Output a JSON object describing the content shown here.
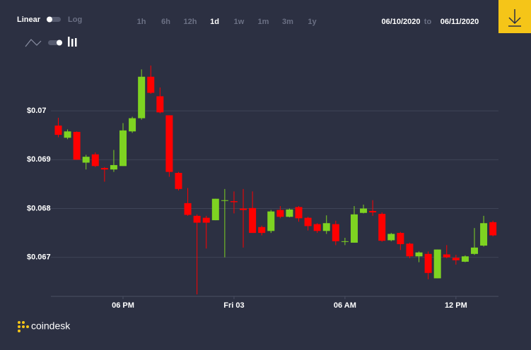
{
  "ui": {
    "scale_linear": "Linear",
    "scale_log": "Log",
    "ranges": [
      "1h",
      "6h",
      "12h",
      "1d",
      "1w",
      "1m",
      "3m",
      "1y"
    ],
    "selected_range": "1d",
    "date_from": "06/10/2020",
    "date_sep": "to",
    "date_to": "06/11/2020",
    "brand": "coindesk"
  },
  "chart_data": {
    "type": "candlestick",
    "x": [
      14.5,
      15,
      15.5,
      16,
      16.5,
      17,
      17.5,
      18,
      18.5,
      19,
      19.5,
      20,
      20.5,
      21,
      21.5,
      22,
      22.5,
      23,
      23.5,
      24,
      24.5,
      25,
      25.5,
      26,
      26.5,
      27,
      27.5,
      28,
      28.5,
      29,
      29.5,
      30,
      30.5,
      31,
      31.5,
      32,
      32.5,
      33,
      33.5,
      34,
      34.5,
      35,
      35.5,
      36,
      36.5,
      37,
      37.5,
      38
    ],
    "open": [
      0.0697,
      0.06945,
      0.06957,
      0.06894,
      0.06911,
      0.06883,
      0.0688,
      0.06887,
      0.06958,
      0.06985,
      0.0707,
      0.0703,
      0.06991,
      0.06873,
      0.06811,
      0.06785,
      0.06781,
      0.06776,
      0.06816,
      0.06815,
      0.068,
      0.06801,
      0.06762,
      0.06754,
      0.06797,
      0.06783,
      0.06803,
      0.06781,
      0.06768,
      0.06754,
      0.06768,
      0.06732,
      0.0673,
      0.06791,
      0.06795,
      0.06789,
      0.06735,
      0.0675,
      0.06728,
      0.06702,
      0.06707,
      0.06657,
      0.06706,
      0.06699,
      0.06691,
      0.06707,
      0.06724,
      0.06772
    ],
    "high": [
      0.06986,
      0.06962,
      0.06958,
      0.0691,
      0.06915,
      0.06885,
      0.0692,
      0.06975,
      0.06988,
      0.07085,
      0.07093,
      0.07048,
      0.06991,
      0.06875,
      0.06842,
      0.06788,
      0.06785,
      0.0682,
      0.0684,
      0.06835,
      0.0684,
      0.06835,
      0.06765,
      0.06797,
      0.06805,
      0.068,
      0.06805,
      0.06783,
      0.0677,
      0.06786,
      0.06775,
      0.0674,
      0.06805,
      0.06808,
      0.06817,
      0.06792,
      0.0675,
      0.06752,
      0.0673,
      0.06712,
      0.06712,
      0.06716,
      0.06725,
      0.06705,
      0.06704,
      0.0676,
      0.06785,
      0.06775
    ],
    "low": [
      0.06946,
      0.06942,
      0.069,
      0.0688,
      0.06885,
      0.06855,
      0.06875,
      0.06887,
      0.06955,
      0.06982,
      0.07035,
      0.06995,
      0.06865,
      0.06837,
      0.06785,
      0.06624,
      0.06718,
      0.06776,
      0.067,
      0.0679,
      0.0672,
      0.0675,
      0.06745,
      0.0675,
      0.0678,
      0.06782,
      0.06773,
      0.06755,
      0.0675,
      0.06748,
      0.06725,
      0.06725,
      0.0673,
      0.0679,
      0.06785,
      0.06732,
      0.06733,
      0.06715,
      0.06698,
      0.0669,
      0.06655,
      0.06657,
      0.06698,
      0.06685,
      0.0669,
      0.06705,
      0.06722,
      0.06743
    ],
    "close": [
      0.06951,
      0.06958,
      0.069,
      0.06906,
      0.06887,
      0.0688,
      0.06889,
      0.0696,
      0.06985,
      0.0707,
      0.07037,
      0.06997,
      0.06875,
      0.0684,
      0.06787,
      0.06771,
      0.06771,
      0.0682,
      0.06817,
      0.06813,
      0.06797,
      0.0675,
      0.0675,
      0.06794,
      0.06783,
      0.06798,
      0.0678,
      0.06764,
      0.06754,
      0.0677,
      0.06733,
      0.06733,
      0.06788,
      0.068,
      0.06792,
      0.06734,
      0.06748,
      0.06727,
      0.06702,
      0.0671,
      0.06668,
      0.06716,
      0.067,
      0.06694,
      0.06702,
      0.0672,
      0.0677,
      0.06745
    ],
    "up_color": "#7ed321",
    "down_color": "#ff0000",
    "xlim": [
      14.1,
      38.3
    ],
    "xticks": [
      {
        "value": 18,
        "label": "06 PM"
      },
      {
        "value": 24,
        "label": "Fri 03"
      },
      {
        "value": 30,
        "label": "06 AM"
      },
      {
        "value": 36,
        "label": "12 PM"
      }
    ],
    "ylim": [
      0.0662,
      0.071
    ],
    "yticks": [
      {
        "value": 0.067,
        "label": "$0.067"
      },
      {
        "value": 0.068,
        "label": "$0.068"
      },
      {
        "value": 0.069,
        "label": "$0.069"
      },
      {
        "value": 0.07,
        "label": "$0.07"
      }
    ],
    "grid": true
  }
}
